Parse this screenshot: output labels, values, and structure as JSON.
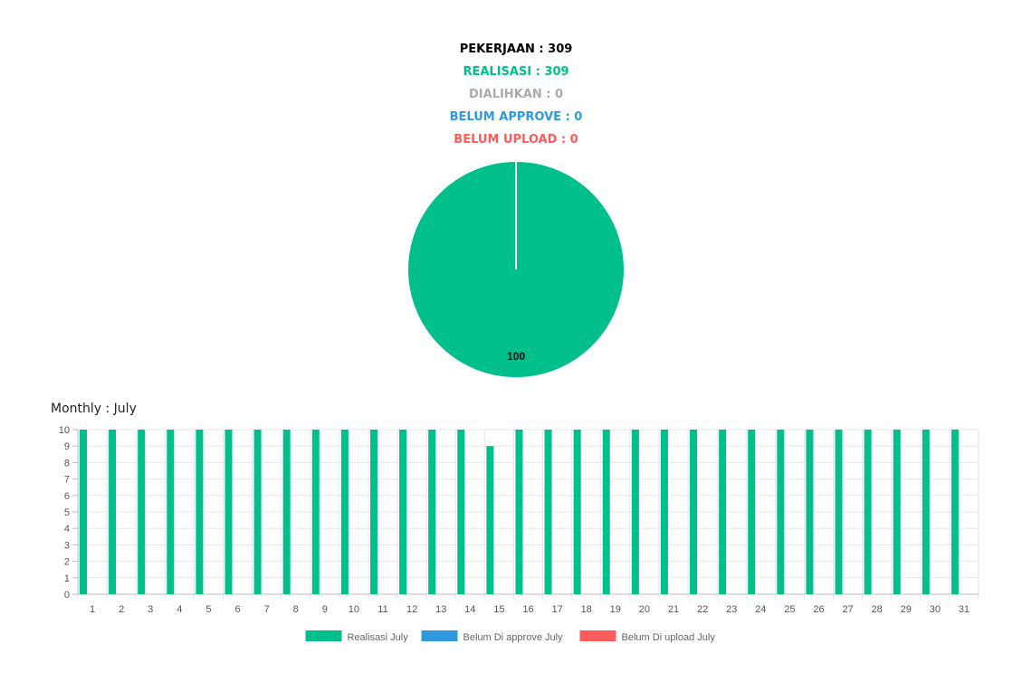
{
  "summary": {
    "pekerjaan": "PEKERJAAN : 309",
    "realisasi": "REALISASI : 309",
    "dialihkan": "DIALIHKAN : 0",
    "belum_approve": "BELUM APPROVE : 0",
    "belum_upload": "BELUM UPLOAD : 0"
  },
  "colors": {
    "pekerjaan": "#000000",
    "realisasi": "#00bf8a",
    "dialihkan": "#aaaaaa",
    "belum_approve": "#2e99dd",
    "belum_upload": "#ff5b5b"
  },
  "monthly_title": "Monthly : July",
  "chart_data": [
    {
      "type": "pie",
      "slices": [
        {
          "label": "",
          "value": 100,
          "color": "#00bf8a"
        }
      ],
      "data_labels": [
        "100"
      ]
    },
    {
      "type": "bar",
      "categories": [
        "1",
        "2",
        "3",
        "4",
        "5",
        "6",
        "7",
        "8",
        "9",
        "10",
        "11",
        "12",
        "13",
        "14",
        "15",
        "16",
        "17",
        "18",
        "19",
        "20",
        "21",
        "22",
        "23",
        "24",
        "25",
        "26",
        "27",
        "28",
        "29",
        "30",
        "31"
      ],
      "series": [
        {
          "name": "Realisasi July",
          "color": "#00bf8a",
          "values": [
            10,
            10,
            10,
            10,
            10,
            10,
            10,
            10,
            10,
            10,
            10,
            10,
            10,
            10,
            9,
            10,
            10,
            10,
            10,
            10,
            10,
            10,
            10,
            10,
            10,
            10,
            10,
            10,
            10,
            10,
            10
          ]
        },
        {
          "name": "Belum Di approve July",
          "color": "#2e99dd",
          "values": [
            0,
            0,
            0,
            0,
            0,
            0,
            0,
            0,
            0,
            0,
            0,
            0,
            0,
            0,
            0,
            0,
            0,
            0,
            0,
            0,
            0,
            0,
            0,
            0,
            0,
            0,
            0,
            0,
            0,
            0,
            0
          ]
        },
        {
          "name": "Belum Di upload July",
          "color": "#ff5b5b",
          "values": [
            0,
            0,
            0,
            0,
            0,
            0,
            0,
            0,
            0,
            0,
            0,
            0,
            0,
            0,
            0,
            0,
            0,
            0,
            0,
            0,
            0,
            0,
            0,
            0,
            0,
            0,
            0,
            0,
            0,
            0,
            0
          ]
        }
      ],
      "yticks": [
        0,
        1,
        2,
        3,
        4,
        5,
        6,
        7,
        8,
        9,
        10
      ],
      "ylim": [
        0,
        10
      ],
      "grid": true,
      "legend": "bottom"
    }
  ]
}
